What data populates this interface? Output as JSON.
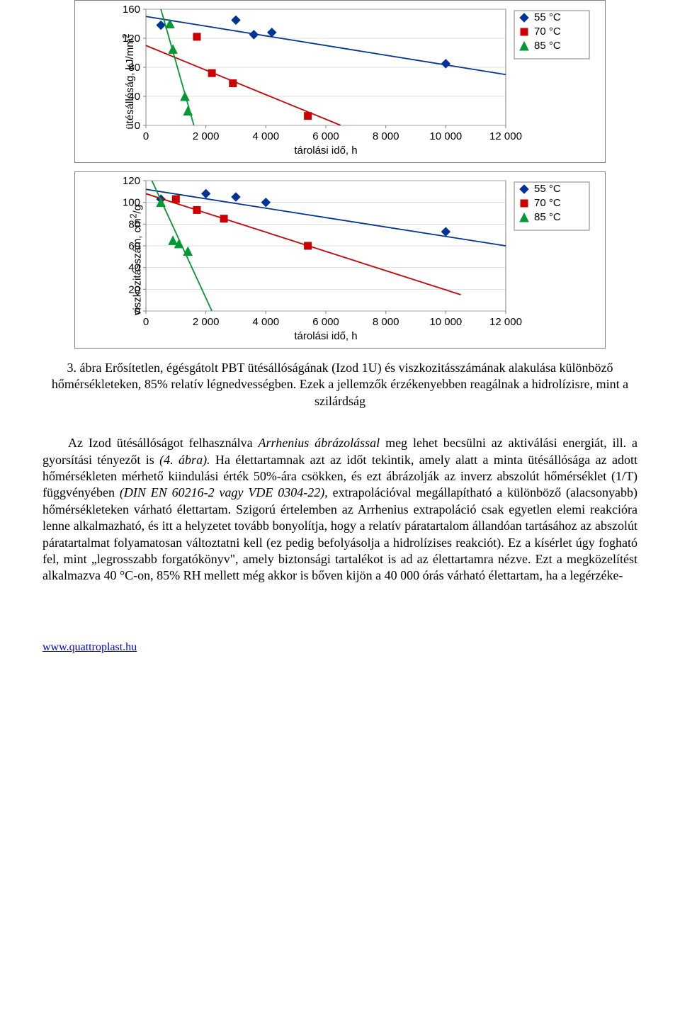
{
  "chart1": {
    "type": "scatter-line",
    "ylabel": "ütésállóság, kJ/mm",
    "ylabel_sup": "2",
    "xlabel": "tárolási idő, h",
    "xmin": 0,
    "xmax": 12000,
    "xstep": 2000,
    "xticks": [
      "0",
      "2 000",
      "4 000",
      "6 000",
      "8 000",
      "10 000",
      "12 000"
    ],
    "ymin": 0,
    "ymax": 160,
    "ystep": 40,
    "yticks": [
      "0",
      "40",
      "80",
      "120",
      "160"
    ],
    "background": "#ffffff",
    "grid_color": "#c0c0c0",
    "axis_color": "#808080",
    "tick_fontsize": 15,
    "label_fontsize": 15,
    "series": [
      {
        "name": "55 °C",
        "marker": "diamond",
        "color": "#003399",
        "line_color": "#003399",
        "points": [
          [
            500,
            138
          ],
          [
            3000,
            145
          ],
          [
            3600,
            125
          ],
          [
            4200,
            128
          ],
          [
            10000,
            85
          ]
        ],
        "line": [
          [
            0,
            150
          ],
          [
            12000,
            70
          ]
        ]
      },
      {
        "name": "70 °C",
        "marker": "square",
        "color": "#cc0000",
        "line_color": "#cc0000",
        "points": [
          [
            1700,
            122
          ],
          [
            2200,
            72
          ],
          [
            2900,
            58
          ],
          [
            5400,
            13
          ]
        ],
        "line": [
          [
            0,
            110
          ],
          [
            6500,
            0
          ]
        ]
      },
      {
        "name": "85 °C",
        "marker": "triangle",
        "color": "#009933",
        "line_color": "#009933",
        "points": [
          [
            800,
            140
          ],
          [
            900,
            105
          ],
          [
            1300,
            40
          ],
          [
            1400,
            20
          ]
        ],
        "line": [
          [
            500,
            160
          ],
          [
            1600,
            0
          ]
        ]
      }
    ],
    "legend": {
      "items": [
        "55 °C",
        "70 °C",
        "85 °C"
      ]
    }
  },
  "chart2": {
    "type": "scatter-line",
    "ylabel": "viszkozitásszám, cm",
    "ylabel_sup": "2",
    "ylabel_suffix": "/g",
    "xlabel": "tárolási idő, h",
    "xmin": 0,
    "xmax": 12000,
    "xstep": 2000,
    "xticks": [
      "0",
      "2 000",
      "4 000",
      "6 000",
      "8 000",
      "10 000",
      "12 000"
    ],
    "ymin": 0,
    "ymax": 120,
    "ystep": 20,
    "yticks": [
      "0",
      "20",
      "40",
      "60",
      "80",
      "100",
      "120"
    ],
    "background": "#ffffff",
    "grid_color": "#c0c0c0",
    "axis_color": "#808080",
    "tick_fontsize": 15,
    "label_fontsize": 15,
    "series": [
      {
        "name": "55 °C",
        "marker": "diamond",
        "color": "#003399",
        "line_color": "#003399",
        "points": [
          [
            500,
            103
          ],
          [
            2000,
            108
          ],
          [
            3000,
            105
          ],
          [
            4000,
            100
          ],
          [
            10000,
            73
          ]
        ],
        "line": [
          [
            0,
            112
          ],
          [
            12000,
            60
          ]
        ]
      },
      {
        "name": "70 °C",
        "marker": "square",
        "color": "#cc0000",
        "line_color": "#cc0000",
        "points": [
          [
            1000,
            103
          ],
          [
            1700,
            93
          ],
          [
            2600,
            85
          ],
          [
            5400,
            60
          ]
        ],
        "line": [
          [
            0,
            108
          ],
          [
            10500,
            15
          ]
        ]
      },
      {
        "name": "85 °C",
        "marker": "triangle",
        "color": "#009933",
        "line_color": "#009933",
        "points": [
          [
            500,
            100
          ],
          [
            900,
            65
          ],
          [
            1100,
            62
          ],
          [
            1400,
            55
          ]
        ],
        "line": [
          [
            200,
            120
          ],
          [
            2200,
            0
          ]
        ]
      }
    ],
    "legend": {
      "items": [
        "55 °C",
        "70 °C",
        "85 °C"
      ]
    }
  },
  "caption": "3. ábra Erősítetlen, égésgátolt PBT ütésállóságának (Izod 1U) és viszkozitásszámának alakulása különböző hőmérsékleteken, 85% relatív légnedvességben. Ezek a jellemzők érzékenyebben reagálnak a hidrolízisre, mint a szilárdság",
  "paragraph": {
    "p1a": "Az Izod ütésállóságot felhasználva ",
    "p1i1": "Arrhenius ábrázolással",
    "p1b": " meg lehet becsülni az aktiválási energiát, ill. a gyorsítási tényezőt is ",
    "p1i2": "(4. ábra).",
    "p1c": " Ha élettartamnak azt az időt tekintik, amely alatt a minta ütésállósága az adott hőmérsékleten mérhető kiindulási érték 50%-ára csökken, és ezt ábrázolják az inverz abszolút hőmérséklet (1/T) függvényében ",
    "p1i3": "(DIN EN 60216-2 vagy VDE 0304-22),",
    "p1d": " extrapolációval megállapítható a különböző (alacsonyabb) hőmérsékleteken várható élettartam. Szigorú értelemben az Arrhenius extrapoláció csak egyetlen elemi reakcióra lenne alkalmazható, és itt a helyzetet tovább bonyolítja, hogy a relatív páratartalom állandóan tartásához az abszolút páratartalmat folyamatosan változtatni kell (ez pedig befolyásolja a hidrolízises reakciót). Ez a kísérlet úgy fogható fel, mint „legrosszabb forgatókönyv\", amely biztonsági tartalékot is ad az élettartamra nézve. Ezt a megközelítést alkalmazva 40 °C-on, 85% RH mellett még akkor is bőven kijön a 40 000 órás várható élettartam, ha a legérzéke-"
  },
  "footer_link": "www.quattroplast.hu"
}
